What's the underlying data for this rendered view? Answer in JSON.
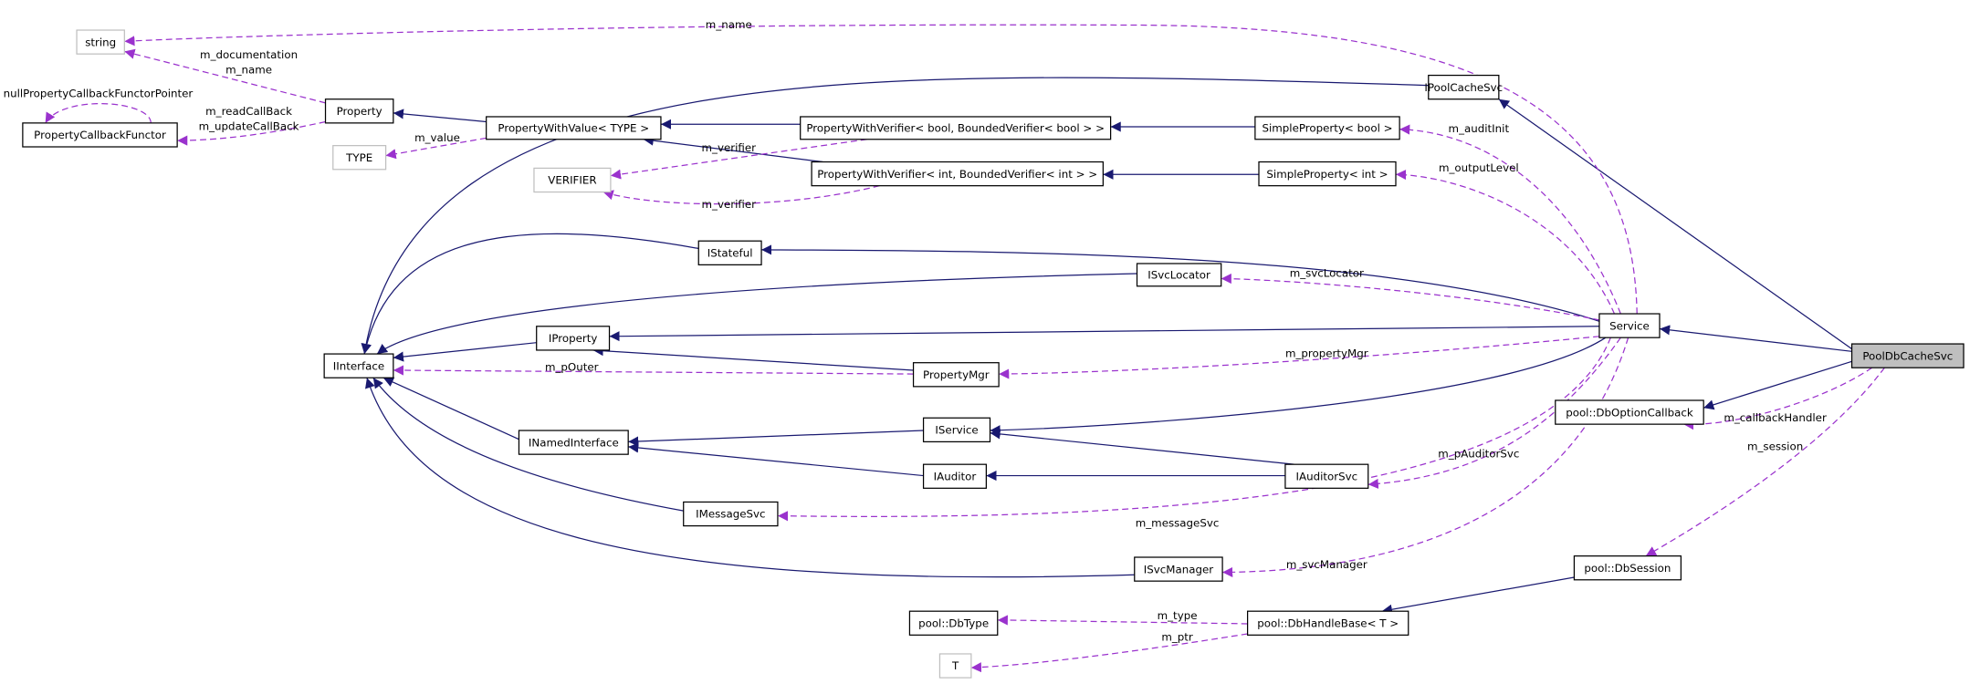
{
  "nodes": [
    {
      "label": "string"
    },
    {
      "label": "PropertyCallbackFunctor"
    },
    {
      "label": "Property"
    },
    {
      "label": "TYPE"
    },
    {
      "label": "PropertyWithValue< TYPE >"
    },
    {
      "label": "PropertyWithVerifier< bool, BoundedVerifier< bool > >"
    },
    {
      "label": "SimpleProperty< bool >"
    },
    {
      "label": "VERIFIER"
    },
    {
      "label": "PropertyWithVerifier< int, BoundedVerifier< int > >"
    },
    {
      "label": "SimpleProperty< int >"
    },
    {
      "label": "IPoolCacheSvc"
    },
    {
      "label": "IStateful"
    },
    {
      "label": "ISvcLocator"
    },
    {
      "label": "IInterface"
    },
    {
      "label": "IProperty"
    },
    {
      "label": "PropertyMgr"
    },
    {
      "label": "Service"
    },
    {
      "label": "PoolDbCacheSvc"
    },
    {
      "label": "pool::DbOptionCallback"
    },
    {
      "label": "INamedInterface"
    },
    {
      "label": "IService"
    },
    {
      "label": "IAuditor"
    },
    {
      "label": "IAuditorSvc"
    },
    {
      "label": "IMessageSvc"
    },
    {
      "label": "ISvcManager"
    },
    {
      "label": "pool::DbSession"
    },
    {
      "label": "pool::DbType"
    },
    {
      "label": "pool::DbHandleBase< T >"
    },
    {
      "label": "T"
    }
  ],
  "edge_labels": [
    "m_name",
    "m_documentation",
    "m_name",
    "nullPropertyCallbackFunctorPointer",
    "m_readCallBack",
    "m_updateCallBack",
    "m_value",
    "m_verifier",
    "m_verifier",
    "m_auditInit",
    "m_outputLevel",
    "m_svcLocator",
    "m_pOuter",
    "m_propertyMgr",
    "m_callbackHandler",
    "m_session",
    "m_pAuditorSvc",
    "m_messageSvc",
    "m_svcManager",
    "m_type",
    "m_ptr"
  ]
}
